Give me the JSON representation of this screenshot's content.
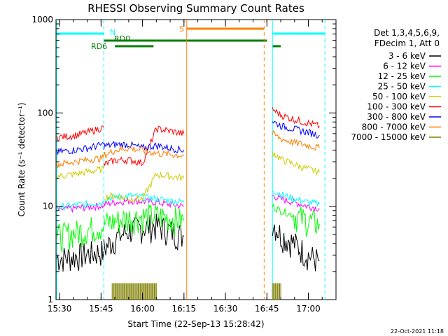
{
  "chart_data": {
    "type": "line",
    "title": "RHESSI Observing Summary Count Rates",
    "xlabel": "Start Time (22-Sep-13 15:28:42)",
    "ylabel": "Count Rate (s⁻¹ detector⁻¹)",
    "yscale": "log",
    "ylim": [
      1,
      1000
    ],
    "yticks": [
      1,
      10,
      100,
      1000
    ],
    "yticklabels": [
      "1",
      "10",
      "100",
      "1000"
    ],
    "xlim": [
      "15:28:42",
      "17:10"
    ],
    "xticks": [
      "15:30",
      "15:45",
      "16:00",
      "16:15",
      "16:30",
      "16:45",
      "17:00"
    ],
    "timestamp": "22-Oct-2021 11:18",
    "legend_header": [
      "Det 1,3,4,5,6,9,",
      "FDecim 1, Att 0"
    ],
    "legend_placement": "right",
    "flag_labels": {
      "n": "N",
      "s": "S",
      "rd0": "RD0",
      "rd6": "RD6"
    },
    "colors": {
      "night": "#00ffff",
      "saa": "#ff7f00",
      "rd0": "#007f00",
      "rd6": "#007f00"
    },
    "series": [
      {
        "name": "3 - 6 keV",
        "color": "#000000",
        "segments": [
          {
            "x": [
              "15:29",
              "15:35",
              "15:40",
              "15:46"
            ],
            "y": [
              2.8,
              2.9,
              3.1,
              3.3
            ]
          },
          {
            "x": [
              "15:46",
              "15:50",
              "15:55",
              "16:00",
              "16:05",
              "16:10",
              "16:15"
            ],
            "y": [
              3.5,
              4.5,
              5.5,
              6.0,
              6.2,
              5.5,
              4.8
            ]
          },
          {
            "x": [
              "16:47",
              "16:50",
              "16:55",
              "17:00",
              "17:04"
            ],
            "y": [
              7.0,
              5.0,
              4.0,
              3.0,
              2.6
            ]
          }
        ]
      },
      {
        "name": "6 - 12 keV",
        "color": "#ff00ff",
        "segments": [
          {
            "x": [
              "15:29",
              "15:35",
              "15:40",
              "15:46"
            ],
            "y": [
              9.2,
              9.5,
              9.8,
              10.2
            ]
          },
          {
            "x": [
              "15:46",
              "15:50",
              "15:55",
              "16:00",
              "16:05",
              "16:10",
              "16:15"
            ],
            "y": [
              10.5,
              11.0,
              11.5,
              11.3,
              11.0,
              10.5,
              10.0
            ]
          },
          {
            "x": [
              "16:47",
              "16:50",
              "16:55",
              "17:00",
              "17:04"
            ],
            "y": [
              13.0,
              12.0,
              11.0,
              10.0,
              9.5
            ]
          }
        ]
      },
      {
        "name": "12 - 25 keV",
        "color": "#00ff00",
        "segments": [
          {
            "x": [
              "15:29",
              "15:35",
              "15:40",
              "15:46"
            ],
            "y": [
              4.8,
              5.2,
              5.7,
              6.2
            ]
          },
          {
            "x": [
              "15:46",
              "15:50",
              "15:55",
              "16:00",
              "16:05",
              "16:10",
              "16:15"
            ],
            "y": [
              6.5,
              7.0,
              7.5,
              7.8,
              8.0,
              7.5,
              7.0
            ]
          },
          {
            "x": [
              "16:47",
              "16:50",
              "16:55",
              "17:00",
              "17:04"
            ],
            "y": [
              10.0,
              9.0,
              8.0,
              7.0,
              6.5
            ]
          }
        ]
      },
      {
        "name": "25 - 50 keV",
        "color": "#00ffff",
        "segments": [
          {
            "x": [
              "15:29",
              "15:35",
              "15:40",
              "15:46"
            ],
            "y": [
              9.8,
              10.2,
              10.6,
              11.0
            ]
          },
          {
            "x": [
              "15:46",
              "15:50",
              "15:55",
              "16:00",
              "16:05",
              "16:10",
              "16:15"
            ],
            "y": [
              12.0,
              12.5,
              13.0,
              12.5,
              12.0,
              11.5,
              11.0
            ]
          },
          {
            "x": [
              "16:47",
              "16:50",
              "16:55",
              "17:00",
              "17:04"
            ],
            "y": [
              15.0,
              13.5,
              12.0,
              11.0,
              10.5
            ]
          }
        ]
      },
      {
        "name": "50 - 100 keV",
        "color": "#cccc00",
        "segments": [
          {
            "x": [
              "15:29",
              "15:35",
              "15:40",
              "15:46"
            ],
            "y": [
              21.0,
              22.0,
              23.5,
              25.0
            ]
          },
          {
            "x": [
              "15:46",
              "15:50",
              "15:55",
              "16:00",
              "16:05",
              "16:10",
              "16:15"
            ],
            "y": [
              12.5,
              13.0,
              12.0,
              12.0,
              22.0,
              21.0,
              20.0
            ]
          },
          {
            "x": [
              "16:47",
              "16:50",
              "16:55",
              "17:00",
              "17:04"
            ],
            "y": [
              38.0,
              32.0,
              28.0,
              25.0,
              23.0
            ]
          }
        ]
      },
      {
        "name": "100 - 300 keV",
        "color": "#ff0000",
        "segments": [
          {
            "x": [
              "15:29",
              "15:35",
              "15:40",
              "15:46"
            ],
            "y": [
              55.0,
              57.0,
              62.0,
              70.0
            ]
          },
          {
            "x": [
              "15:46",
              "15:50",
              "15:55",
              "16:00",
              "16:05",
              "16:10",
              "16:15"
            ],
            "y": [
              28.0,
              31.0,
              31.5,
              29.0,
              68.0,
              64.0,
              60.0
            ]
          },
          {
            "x": [
              "16:47",
              "16:50",
              "16:55",
              "17:00",
              "17:04"
            ],
            "y": [
              110.0,
              95.0,
              85.0,
              78.0,
              72.0
            ]
          }
        ]
      },
      {
        "name": "300 - 800 keV",
        "color": "#0000ff",
        "segments": [
          {
            "x": [
              "15:29",
              "15:35",
              "15:40",
              "15:46"
            ],
            "y": [
              38.0,
              40.0,
              42.0,
              46.0
            ]
          },
          {
            "x": [
              "15:46",
              "15:50",
              "15:55",
              "16:00",
              "16:05",
              "16:10",
              "16:15"
            ],
            "y": [
              44.0,
              46.0,
              46.0,
              42.0,
              45.0,
              42.0,
              40.0
            ]
          },
          {
            "x": [
              "16:47",
              "16:50",
              "16:55",
              "17:00",
              "17:04"
            ],
            "y": [
              82.0,
              73.0,
              67.0,
              62.0,
              58.0
            ]
          }
        ]
      },
      {
        "name": "800 - 7000 keV",
        "color": "#ff7f00",
        "segments": [
          {
            "x": [
              "15:29",
              "15:35",
              "15:40",
              "15:46"
            ],
            "y": [
              28.0,
              30.0,
              31.5,
              33.0
            ]
          },
          {
            "x": [
              "15:46",
              "15:50",
              "15:55",
              "16:00",
              "16:05",
              "16:10",
              "16:15"
            ],
            "y": [
              35.0,
              40.0,
              42.0,
              40.0,
              37.0,
              36.0,
              35.0
            ]
          },
          {
            "x": [
              "16:47",
              "16:50",
              "16:55",
              "17:00",
              "17:04"
            ],
            "y": [
              60.0,
              53.0,
              48.0,
              45.0,
              42.0
            ]
          }
        ]
      },
      {
        "name": "7000 - 15000 keV",
        "color": "#7f7f00",
        "segments": [
          {
            "x": [
              "15:49",
              "15:53",
              "15:57",
              "16:01",
              "16:05"
            ],
            "y": [
              1.5,
              1.5,
              1.5,
              1.5,
              1.5
            ]
          },
          {
            "x": [
              "16:47",
              "16:50"
            ],
            "y": [
              1.5,
              1.5
            ]
          }
        ]
      }
    ],
    "flags": {
      "night": [
        [
          "15:29",
          "15:46"
        ],
        [
          "16:47",
          "17:06"
        ]
      ],
      "saa": [
        [
          "16:16",
          "16:44"
        ]
      ],
      "rd0": [
        [
          "15:46",
          "16:05"
        ],
        [
          "16:05",
          "16:45"
        ]
      ],
      "rd6": [
        [
          "15:50",
          "16:04"
        ],
        [
          "16:47",
          "16:50"
        ]
      ]
    },
    "vertical_lines": [
      {
        "x": "15:29",
        "color": "#00ffff",
        "style": "solid"
      },
      {
        "x": "15:46",
        "color": "#00ffff",
        "style": "dashed"
      },
      {
        "x": "16:16",
        "color": "#ff7f00",
        "style": "solid"
      },
      {
        "x": "16:44",
        "color": "#ff7f00",
        "style": "dashed"
      },
      {
        "x": "16:47",
        "color": "#00ffff",
        "style": "solid"
      },
      {
        "x": "17:06",
        "color": "#00ffff",
        "style": "dashed"
      }
    ]
  }
}
